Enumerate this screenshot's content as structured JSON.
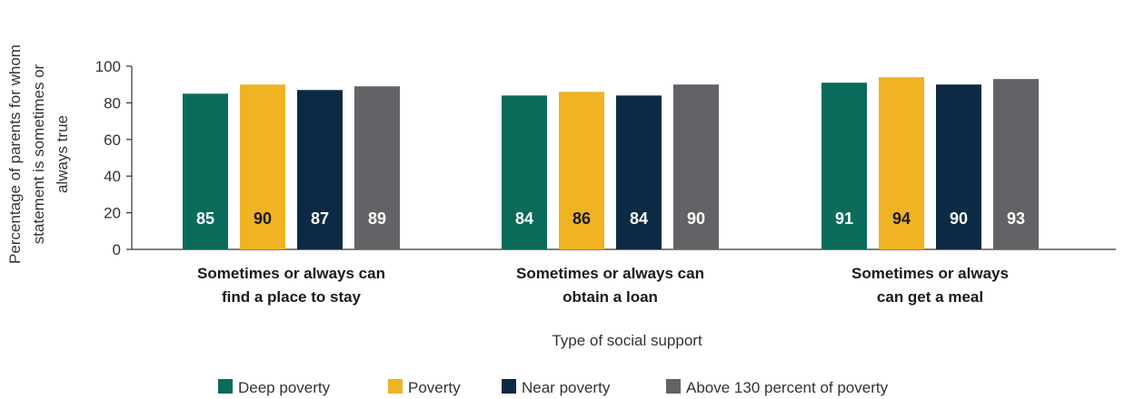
{
  "chart_data": {
    "type": "bar",
    "title": "",
    "xlabel": "Type of social support",
    "ylabel": [
      "Percentage of parents for whom",
      "statement is sometimes or",
      "always true"
    ],
    "ylim": [
      0,
      100
    ],
    "yticks": [
      0,
      20,
      40,
      60,
      80,
      100
    ],
    "grid": false,
    "legend_position": "bottom",
    "categories": [
      [
        "Sometimes or always can",
        "find a place to stay"
      ],
      [
        "Sometimes or always can",
        "obtain a loan"
      ],
      [
        "Sometimes or always",
        "can get a meal"
      ]
    ],
    "series": [
      {
        "name": "Deep poverty",
        "color": "#0a6b5b",
        "label_color": "#ffffff",
        "values": [
          85,
          84,
          91
        ]
      },
      {
        "name": "Poverty",
        "color": "#f0b323",
        "label_color": "#1a1a1a",
        "values": [
          90,
          86,
          94
        ]
      },
      {
        "name": "Near poverty",
        "color": "#0d2a45",
        "label_color": "#ffffff",
        "values": [
          87,
          84,
          90
        ]
      },
      {
        "name": "Above 130 percent of poverty",
        "color": "#626366",
        "label_color": "#ffffff",
        "values": [
          89,
          90,
          93
        ]
      }
    ]
  }
}
